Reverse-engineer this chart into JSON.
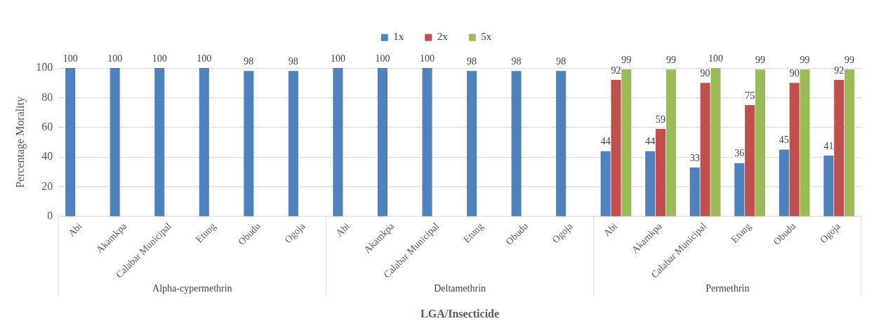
{
  "chart_data": {
    "type": "bar",
    "categories": [
      "Abi",
      "Akamkpa",
      "Calabar Municipal",
      "Etung",
      "Obudu",
      "Ogoja",
      "Abi",
      "Akamkpa",
      "Calabar Municipal",
      "Etung",
      "Obudu",
      "Ogoja",
      "Abi",
      "Akamkpa",
      "Calabar Municipal",
      "Etung",
      "Obudu",
      "Ogoja"
    ],
    "series": [
      {
        "name": "1x",
        "color": "#4f81bd",
        "values": [
          100,
          100,
          100,
          100,
          98,
          98,
          100,
          100,
          100,
          98,
          98,
          98,
          44,
          44,
          33,
          36,
          45,
          41
        ]
      },
      {
        "name": "2x",
        "color": "#c0504d",
        "values": [
          null,
          null,
          null,
          null,
          null,
          null,
          null,
          null,
          null,
          null,
          null,
          null,
          92,
          59,
          90,
          75,
          90,
          92
        ]
      },
      {
        "name": "5x",
        "color": "#9bbb59",
        "values": [
          null,
          null,
          null,
          null,
          null,
          null,
          null,
          null,
          null,
          null,
          null,
          null,
          99,
          99,
          100,
          99,
          99,
          99
        ]
      }
    ],
    "xlabel": "LGA/Insecticide",
    "ylabel": "Percentage Morality",
    "annotations": [
      "Alpha-cypermethrin",
      "Deltamethrin",
      "Permethrin"
    ],
    "ylim": [
      0,
      100
    ],
    "yticks": [
      0,
      20,
      40,
      60,
      80,
      100
    ],
    "grid": "y",
    "legend": "top",
    "data_labels": true
  }
}
